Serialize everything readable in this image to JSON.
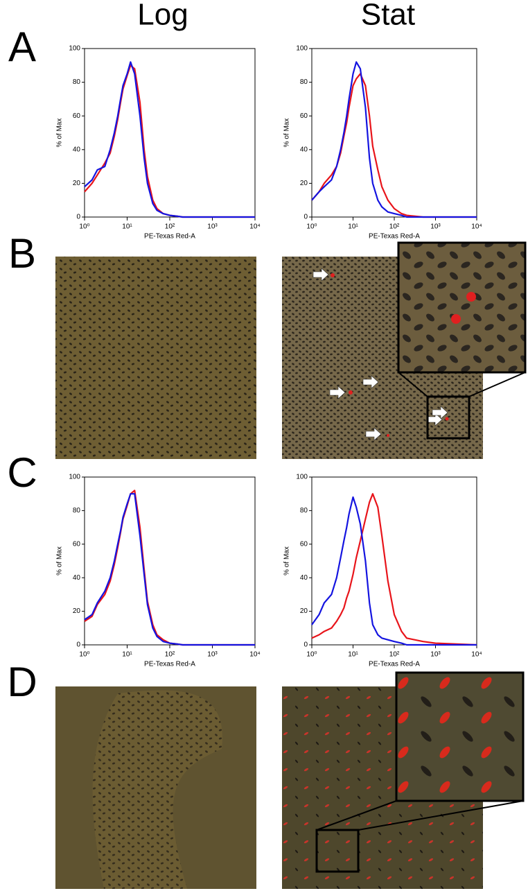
{
  "columns": [
    "Log",
    "Stat"
  ],
  "panels": [
    "A",
    "B",
    "C",
    "D"
  ],
  "chart_data": [
    {
      "type": "line",
      "xlabel": "PE-Texas Red-A",
      "ylabel": "% of Max",
      "log_x": true,
      "x": [
        1,
        1.5,
        2,
        3,
        4,
        5,
        6,
        7,
        8,
        10,
        12,
        15,
        20,
        25,
        30,
        40,
        50,
        70,
        100,
        150,
        200,
        500,
        1000,
        10000
      ],
      "xlim": [
        1,
        10000
      ],
      "xticks": [
        {
          "value": 1,
          "label": "10⁰"
        },
        {
          "value": 10,
          "label": "10¹"
        },
        {
          "value": 100,
          "label": "10²"
        },
        {
          "value": 1000,
          "label": "10³"
        },
        {
          "value": 10000,
          "label": "10⁴"
        }
      ],
      "ylim": [
        0,
        100
      ],
      "yticks": [
        0,
        20,
        40,
        60,
        80,
        100
      ],
      "series": [
        {
          "color": "#e8141a",
          "values": [
            15,
            20,
            25,
            32,
            38,
            48,
            58,
            68,
            76,
            84,
            90,
            88,
            68,
            40,
            24,
            10,
            5,
            2,
            1,
            0.5,
            0,
            0,
            0,
            0
          ]
        },
        {
          "color": "#1414e0",
          "values": [
            18,
            22,
            28,
            30,
            40,
            50,
            60,
            70,
            78,
            85,
            92,
            85,
            60,
            35,
            20,
            8,
            4,
            2,
            1,
            0.5,
            0,
            0,
            0,
            0
          ]
        }
      ]
    },
    {
      "type": "line",
      "xlabel": "PE-Texas Red-A",
      "ylabel": "% of Max",
      "log_x": true,
      "x": [
        1,
        1.5,
        2,
        3,
        4,
        5,
        6,
        7,
        8,
        10,
        12,
        15,
        20,
        25,
        30,
        40,
        50,
        70,
        100,
        150,
        200,
        500,
        1000,
        10000
      ],
      "xlim": [
        1,
        10000
      ],
      "xticks": [
        {
          "value": 1,
          "label": "10⁰"
        },
        {
          "value": 10,
          "label": "10¹"
        },
        {
          "value": 100,
          "label": "10²"
        },
        {
          "value": 1000,
          "label": "10³"
        },
        {
          "value": 10000,
          "label": "10⁴"
        }
      ],
      "ylim": [
        0,
        100
      ],
      "yticks": [
        0,
        20,
        40,
        60,
        80,
        100
      ],
      "series": [
        {
          "color": "#e8141a",
          "values": [
            10,
            15,
            20,
            25,
            30,
            38,
            48,
            56,
            65,
            78,
            82,
            85,
            78,
            60,
            42,
            28,
            18,
            10,
            5,
            2,
            1,
            0,
            0,
            0
          ]
        },
        {
          "color": "#1414e0",
          "values": [
            10,
            15,
            18,
            22,
            30,
            40,
            50,
            60,
            70,
            85,
            92,
            88,
            65,
            35,
            20,
            10,
            6,
            3,
            2,
            1,
            0,
            0,
            0,
            0
          ]
        }
      ]
    },
    {
      "type": "line",
      "xlabel": "PE-Texas Red-A",
      "ylabel": "% of Max",
      "log_x": true,
      "x": [
        1,
        1.5,
        2,
        3,
        4,
        5,
        6,
        7,
        8,
        10,
        12,
        15,
        20,
        25,
        30,
        40,
        50,
        70,
        100,
        150,
        200,
        500,
        1000,
        10000
      ],
      "xlim": [
        1,
        10000
      ],
      "xticks": [
        {
          "value": 1,
          "label": "10⁰"
        },
        {
          "value": 10,
          "label": "10¹"
        },
        {
          "value": 100,
          "label": "10²"
        },
        {
          "value": 1000,
          "label": "10³"
        },
        {
          "value": 10000,
          "label": "10⁴"
        }
      ],
      "ylim": [
        0,
        100
      ],
      "yticks": [
        0,
        20,
        40,
        60,
        80,
        100
      ],
      "series": [
        {
          "color": "#e8141a",
          "values": [
            14,
            17,
            24,
            30,
            38,
            48,
            58,
            67,
            75,
            83,
            90,
            92,
            70,
            45,
            26,
            12,
            6,
            3,
            1,
            0.5,
            0,
            0,
            0,
            0
          ]
        },
        {
          "color": "#1414e0",
          "values": [
            15,
            18,
            25,
            32,
            40,
            50,
            60,
            68,
            76,
            84,
            90,
            90,
            65,
            42,
            24,
            10,
            5,
            2,
            1,
            0.5,
            0,
            0,
            0,
            0
          ]
        }
      ]
    },
    {
      "type": "line",
      "xlabel": "PE-Texas Red-A",
      "ylabel": "% of Max",
      "log_x": true,
      "x": [
        1,
        1.5,
        2,
        3,
        4,
        5,
        6,
        7,
        8,
        10,
        12,
        15,
        20,
        25,
        30,
        40,
        50,
        70,
        100,
        150,
        200,
        500,
        1000,
        10000
      ],
      "xlim": [
        1,
        10000
      ],
      "xticks": [
        {
          "value": 1,
          "label": "10⁰"
        },
        {
          "value": 10,
          "label": "10¹"
        },
        {
          "value": 100,
          "label": "10²"
        },
        {
          "value": 1000,
          "label": "10³"
        },
        {
          "value": 10000,
          "label": "10⁴"
        }
      ],
      "ylim": [
        0,
        100
      ],
      "yticks": [
        0,
        20,
        40,
        60,
        80,
        100
      ],
      "series": [
        {
          "color": "#e8141a",
          "values": [
            4,
            6,
            8,
            10,
            14,
            18,
            22,
            28,
            32,
            42,
            52,
            62,
            75,
            85,
            90,
            82,
            65,
            38,
            18,
            8,
            4,
            2,
            1,
            0
          ]
        },
        {
          "color": "#1414e0",
          "values": [
            12,
            18,
            25,
            30,
            40,
            52,
            62,
            70,
            78,
            88,
            82,
            72,
            50,
            25,
            12,
            6,
            4,
            3,
            2,
            1,
            0,
            0,
            0,
            0
          ]
        }
      ]
    }
  ]
}
